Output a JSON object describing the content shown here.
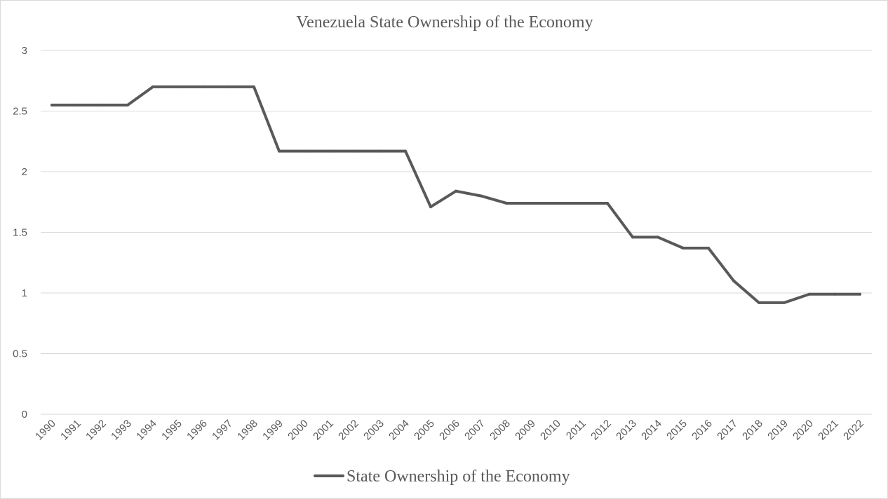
{
  "chart_data": {
    "type": "line",
    "title": "Venezuela State Ownership of the Economy",
    "xlabel": "",
    "ylabel": "",
    "ylim": [
      0,
      3
    ],
    "yticks": [
      "0",
      "0.5",
      "1",
      "1.5",
      "2",
      "2.5",
      "3"
    ],
    "grid": "horizontal",
    "legend_position": "bottom",
    "categories": [
      "1990",
      "1991",
      "1992",
      "1993",
      "1994",
      "1995",
      "1996",
      "1997",
      "1998",
      "1999",
      "2000",
      "2001",
      "2002",
      "2003",
      "2004",
      "2005",
      "2006",
      "2007",
      "2008",
      "2009",
      "2010",
      "2011",
      "2012",
      "2013",
      "2014",
      "2015",
      "2016",
      "2017",
      "2018",
      "2019",
      "2020",
      "2021",
      "2022"
    ],
    "series": [
      {
        "name": "State Ownership of the Economy",
        "color": "#595959",
        "values": [
          2.55,
          2.55,
          2.55,
          2.55,
          2.7,
          2.7,
          2.7,
          2.7,
          2.7,
          2.17,
          2.17,
          2.17,
          2.17,
          2.17,
          2.17,
          1.71,
          1.84,
          1.8,
          1.74,
          1.74,
          1.74,
          1.74,
          1.74,
          1.46,
          1.46,
          1.37,
          1.37,
          1.1,
          0.92,
          0.92,
          0.99,
          0.99,
          0.99
        ]
      }
    ]
  }
}
